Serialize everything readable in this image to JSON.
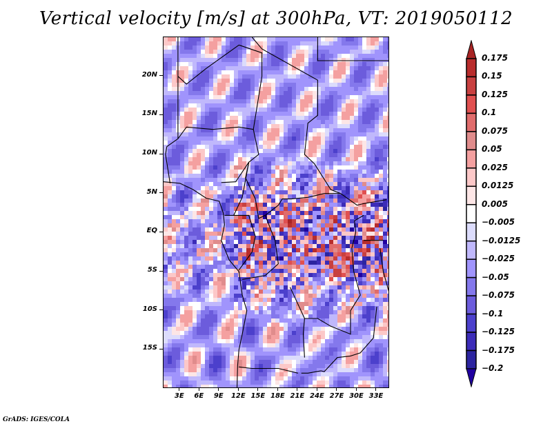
{
  "chart_data": {
    "type": "heatmap",
    "title": "Vertical velocity [m/s] at 300hPa, VT: 2019050112",
    "variable": "Vertical velocity",
    "units": "m/s",
    "level": "300hPa",
    "valid_time": "2019050112",
    "xlabel": "",
    "ylabel": "",
    "x_ticks": [
      "3E",
      "6E",
      "9E",
      "12E",
      "15E",
      "18E",
      "21E",
      "24E",
      "27E",
      "30E",
      "33E"
    ],
    "x_tick_values": [
      3,
      6,
      9,
      12,
      15,
      18,
      21,
      24,
      27,
      30,
      33
    ],
    "y_ticks": [
      "20N",
      "15N",
      "10N",
      "5N",
      "EQ",
      "5S",
      "10S",
      "15S"
    ],
    "y_tick_values": [
      20,
      15,
      10,
      5,
      0,
      -5,
      -10,
      -15
    ],
    "xlim": [
      0.5,
      35
    ],
    "ylim": [
      -20,
      25
    ],
    "colorbar": {
      "orientation": "vertical",
      "placement": "right",
      "extend": "both",
      "labels": [
        "0.175",
        "0.15",
        "0.125",
        "0.1",
        "0.075",
        "0.05",
        "0.025",
        "0.0125",
        "0.005",
        "−0.005",
        "−0.0125",
        "−0.025",
        "−0.05",
        "−0.075",
        "−0.1",
        "−0.125",
        "−0.175",
        "−0.2"
      ],
      "levels": [
        0.175,
        0.15,
        0.125,
        0.1,
        0.075,
        0.05,
        0.025,
        0.0125,
        0.005,
        -0.005,
        -0.0125,
        -0.025,
        -0.05,
        -0.075,
        -0.1,
        -0.125,
        -0.175,
        -0.2
      ],
      "colors": [
        "#a82424",
        "#b82c2c",
        "#c84040",
        "#e05050",
        "#e06c6c",
        "#e08c8c",
        "#f4a0a0",
        "#fcc8c8",
        "#fde6e6",
        "#ffffff",
        "#dcdcfc",
        "#c0b8fc",
        "#a094fc",
        "#8478ec",
        "#6c5cdc",
        "#4c40cc",
        "#3c2cb8",
        "#2c24a0",
        "#2000a0"
      ],
      "top_arrow_color": "#a82424",
      "bottom_arrow_color": "#2000a0"
    },
    "grid": false,
    "description": "Map of Central Africa with country borders; mixture of upward (red) and downward (blue) 300hPa vertical velocity, strongest convective upward motion around 5N-8S, 12E-33E."
  },
  "footer": {
    "credit": "GrADS: IGES/COLA"
  }
}
